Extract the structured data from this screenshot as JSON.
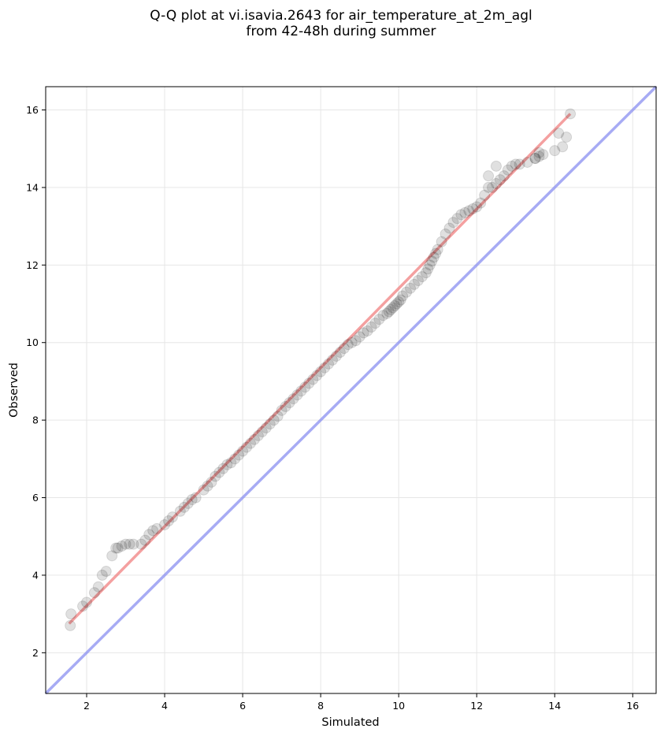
{
  "chart_data": {
    "type": "scatter",
    "title": "Q-Q plot at vi.isavia.2643 for air_temperature_at_2m_agl\nfrom 42-48h during summer",
    "title_lines": [
      "Q-Q plot at vi.isavia.2643 for air_temperature_at_2m_agl",
      "from 42-48h during summer"
    ],
    "xlabel": "Simulated",
    "ylabel": "Observed",
    "xlim": [
      0.95,
      16.6
    ],
    "ylim": [
      0.95,
      16.6
    ],
    "xticks": [
      2,
      4,
      6,
      8,
      10,
      12,
      14,
      16
    ],
    "yticks": [
      2,
      4,
      6,
      8,
      10,
      12,
      14,
      16
    ],
    "grid": true,
    "legend": "none",
    "colors": {
      "points": "#000000",
      "fit_line": "#f08080",
      "identity_line": "#8a8ff0"
    },
    "fit_line": {
      "x": [
        1.55,
        14.4
      ],
      "y": [
        2.75,
        15.9
      ]
    },
    "identity_line": {
      "x": [
        0.95,
        16.6
      ],
      "y": [
        0.95,
        16.6
      ]
    },
    "series": [
      {
        "type": "scatter",
        "x": [
          1.58,
          1.6,
          1.9,
          2.0,
          2.2,
          2.3,
          2.4,
          2.5,
          2.65,
          2.75,
          2.8,
          2.9,
          3.0,
          3.1,
          3.2,
          3.4,
          3.5,
          3.6,
          3.7,
          3.8,
          4.0,
          4.1,
          4.2,
          4.4,
          4.5,
          4.6,
          4.7,
          4.8,
          5.0,
          5.1,
          5.2,
          5.3,
          5.4,
          5.5,
          5.6,
          5.7,
          5.8,
          5.9,
          6.0,
          6.1,
          6.2,
          6.3,
          6.4,
          6.5,
          6.6,
          6.7,
          6.8,
          6.9,
          7.0,
          7.1,
          7.2,
          7.3,
          7.4,
          7.5,
          7.6,
          7.7,
          7.8,
          7.9,
          8.0,
          8.1,
          8.2,
          8.3,
          8.4,
          8.5,
          8.6,
          8.7,
          8.8,
          8.9,
          9.0,
          9.1,
          9.2,
          9.3,
          9.4,
          9.5,
          9.6,
          9.7,
          9.75,
          9.8,
          9.85,
          9.9,
          9.95,
          10.0,
          10.05,
          10.1,
          10.2,
          10.3,
          10.4,
          10.5,
          10.6,
          10.7,
          10.75,
          10.8,
          10.85,
          10.9,
          10.95,
          11.0,
          11.1,
          11.2,
          11.3,
          11.4,
          11.5,
          11.6,
          11.7,
          11.8,
          11.9,
          12.0,
          12.1,
          12.2,
          12.3,
          12.4,
          12.5,
          12.6,
          12.7,
          12.8,
          12.9,
          13.0,
          13.1,
          13.3,
          13.5,
          13.6,
          13.7,
          14.0,
          14.2,
          14.3
        ],
        "y": [
          2.7,
          3.0,
          3.2,
          3.3,
          3.55,
          3.7,
          4.0,
          4.1,
          4.5,
          4.7,
          4.7,
          4.75,
          4.8,
          4.8,
          4.8,
          4.8,
          4.9,
          5.05,
          5.15,
          5.2,
          5.3,
          5.4,
          5.5,
          5.65,
          5.75,
          5.85,
          5.95,
          6.0,
          6.2,
          6.3,
          6.4,
          6.55,
          6.65,
          6.75,
          6.85,
          6.9,
          7.0,
          7.1,
          7.2,
          7.3,
          7.4,
          7.5,
          7.6,
          7.7,
          7.8,
          7.9,
          8.0,
          8.1,
          8.25,
          8.35,
          8.45,
          8.55,
          8.65,
          8.75,
          8.85,
          8.95,
          9.05,
          9.15,
          9.25,
          9.35,
          9.45,
          9.55,
          9.65,
          9.75,
          9.85,
          9.95,
          10.0,
          10.05,
          10.15,
          10.25,
          10.3,
          10.4,
          10.5,
          10.6,
          10.7,
          10.75,
          10.8,
          10.85,
          10.9,
          10.95,
          11.0,
          11.05,
          11.1,
          11.2,
          11.3,
          11.4,
          11.5,
          11.6,
          11.7,
          11.8,
          11.9,
          12.0,
          12.1,
          12.2,
          12.3,
          12.4,
          12.6,
          12.8,
          12.95,
          13.1,
          13.2,
          13.3,
          13.35,
          13.4,
          13.45,
          13.5,
          13.6,
          13.8,
          14.0,
          14.0,
          14.1,
          14.2,
          14.3,
          14.45,
          14.55,
          14.6,
          14.6,
          14.65,
          14.75,
          14.8,
          14.85,
          14.95,
          15.05,
          15.3
        ]
      },
      {
        "type": "scatter",
        "x": [
          14.4,
          14.1,
          13.6,
          13.5,
          12.5,
          12.3
        ],
        "y": [
          15.9,
          15.4,
          14.9,
          14.75,
          14.55,
          14.3
        ]
      }
    ]
  }
}
